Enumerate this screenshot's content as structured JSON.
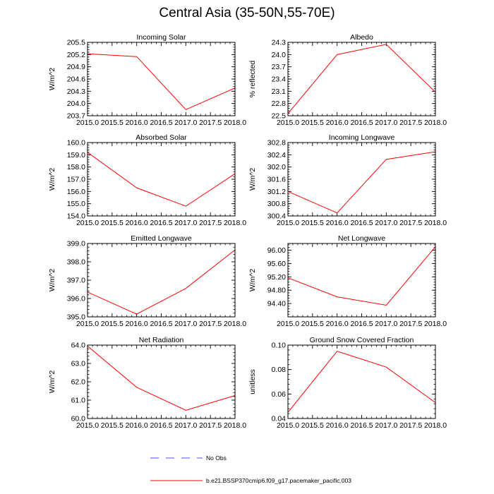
{
  "figure": {
    "title": "Central Asia (35-50N,55-70E)"
  },
  "legend": {
    "items": [
      {
        "label": "No Obs",
        "style": "dashed",
        "color": "#4b4bff"
      },
      {
        "label": "b.e21.BSSP370cmip6.f09_g17.pacemaker_pacific.003",
        "style": "solid",
        "color": "#ff0000"
      }
    ]
  },
  "chart_data": [
    {
      "type": "line",
      "title": "Incoming Solar",
      "ylabel": "W/m^2",
      "x": [
        2015.0,
        2016.0,
        2017.0,
        2018.0
      ],
      "series": [
        {
          "name": "b.e21.BSSP370cmip6.f09_g17.pacemaker_pacific.003",
          "color": "#ff0000",
          "values": [
            205.22,
            205.15,
            203.85,
            204.38
          ]
        }
      ],
      "xlim": [
        2015.0,
        2018.0
      ],
      "ylim": [
        203.7,
        205.5
      ],
      "xticks": [
        "2015.0",
        "2015.5",
        "2016.0",
        "2016.5",
        "2017.0",
        "2017.5",
        "2018.0"
      ],
      "yticks": [
        "203.7",
        "204.0",
        "204.3",
        "204.6",
        "204.9",
        "205.2",
        "205.5"
      ]
    },
    {
      "type": "line",
      "title": "Albedo",
      "ylabel": "% reflected",
      "x": [
        2015.0,
        2016.0,
        2017.0,
        2018.0
      ],
      "series": [
        {
          "name": "b.e21.BSSP370cmip6.f09_g17.pacemaker_pacific.003",
          "color": "#ff0000",
          "values": [
            22.55,
            24.0,
            24.25,
            23.08
          ]
        }
      ],
      "xlim": [
        2015.0,
        2018.0
      ],
      "ylim": [
        22.5,
        24.3
      ],
      "xticks": [
        "2015.0",
        "2015.5",
        "2016.0",
        "2016.5",
        "2017.0",
        "2017.5",
        "2018.0"
      ],
      "yticks": [
        "22.5",
        "22.8",
        "23.1",
        "23.4",
        "23.7",
        "24.0",
        "24.3"
      ]
    },
    {
      "type": "line",
      "title": "Absorbed Solar",
      "ylabel": "W/m^2",
      "x": [
        2015.0,
        2016.0,
        2017.0,
        2018.0
      ],
      "series": [
        {
          "name": "b.e21.BSSP370cmip6.f09_g17.pacemaker_pacific.003",
          "color": "#ff0000",
          "values": [
            159.2,
            156.3,
            154.8,
            157.45
          ]
        }
      ],
      "xlim": [
        2015.0,
        2018.0
      ],
      "ylim": [
        154.0,
        160.0
      ],
      "xticks": [
        "2015.0",
        "2015.5",
        "2016.0",
        "2016.5",
        "2017.0",
        "2017.5",
        "2018.0"
      ],
      "yticks": [
        "154.0",
        "155.0",
        "156.0",
        "157.0",
        "158.0",
        "159.0",
        "160.0"
      ]
    },
    {
      "type": "line",
      "title": "Incoming Longwave",
      "ylabel": "W/m^2",
      "x": [
        2015.0,
        2016.0,
        2017.0,
        2018.0
      ],
      "series": [
        {
          "name": "b.e21.BSSP370cmip6.f09_g17.pacemaker_pacific.003",
          "color": "#ff0000",
          "values": [
            301.2,
            300.5,
            302.25,
            302.5
          ]
        }
      ],
      "xlim": [
        2015.0,
        2018.0
      ],
      "ylim": [
        300.4,
        302.8
      ],
      "xticks": [
        "2015.0",
        "2015.5",
        "2016.0",
        "2016.5",
        "2017.0",
        "2017.5",
        "2018.0"
      ],
      "yticks": [
        "300.4",
        "300.8",
        "301.2",
        "301.6",
        "302.0",
        "302.4",
        "302.8"
      ]
    },
    {
      "type": "line",
      "title": "Emitted Longwave",
      "ylabel": "W/m^2",
      "x": [
        2015.0,
        2016.0,
        2017.0,
        2018.0
      ],
      "series": [
        {
          "name": "b.e21.BSSP370cmip6.f09_g17.pacemaker_pacific.003",
          "color": "#ff0000",
          "values": [
            396.35,
            395.15,
            396.55,
            398.65
          ]
        }
      ],
      "xlim": [
        2015.0,
        2018.0
      ],
      "ylim": [
        395.0,
        399.0
      ],
      "xticks": [
        "2015.0",
        "2015.5",
        "2016.0",
        "2016.5",
        "2017.0",
        "2017.5",
        "2018.0"
      ],
      "yticks": [
        "395.0",
        "396.0",
        "397.0",
        "398.0",
        "399.0"
      ]
    },
    {
      "type": "line",
      "title": "Net Longwave",
      "ylabel": "W/m^2",
      "x": [
        2015.0,
        2016.0,
        2017.0,
        2018.0
      ],
      "series": [
        {
          "name": "b.e21.BSSP370cmip6.f09_g17.pacemaker_pacific.003",
          "color": "#ff0000",
          "values": [
            95.17,
            94.6,
            94.35,
            96.1
          ]
        }
      ],
      "xlim": [
        2015.0,
        2018.0
      ],
      "ylim": [
        94.0,
        96.2
      ],
      "xticks": [
        "2015.0",
        "2015.5",
        "2016.0",
        "2016.5",
        "2017.0",
        "2017.5",
        "2018.0"
      ],
      "yticks": [
        "94.40",
        "94.80",
        "95.20",
        "95.60",
        "96.00"
      ]
    },
    {
      "type": "line",
      "title": "Net Radiation",
      "ylabel": "W/m^2",
      "x": [
        2015.0,
        2016.0,
        2017.0,
        2018.0
      ],
      "series": [
        {
          "name": "b.e21.BSSP370cmip6.f09_g17.pacemaker_pacific.003",
          "color": "#ff0000",
          "values": [
            63.95,
            61.7,
            60.45,
            61.25
          ]
        }
      ],
      "xlim": [
        2015.0,
        2018.0
      ],
      "ylim": [
        60.0,
        64.0
      ],
      "xticks": [
        "2015.0",
        "2015.5",
        "2016.0",
        "2016.5",
        "2017.0",
        "2017.5",
        "2018.0"
      ],
      "yticks": [
        "60.0",
        "61.0",
        "62.0",
        "63.0",
        "64.0"
      ]
    },
    {
      "type": "line",
      "title": "Ground Snow Covered Fraction",
      "ylabel": "unitless",
      "x": [
        2015.0,
        2016.0,
        2017.0,
        2018.0
      ],
      "series": [
        {
          "name": "b.e21.BSSP370cmip6.f09_g17.pacemaker_pacific.003",
          "color": "#ff0000",
          "values": [
            0.045,
            0.095,
            0.082,
            0.053
          ]
        }
      ],
      "xlim": [
        2015.0,
        2018.0
      ],
      "ylim": [
        0.04,
        0.1
      ],
      "xticks": [
        "2015.0",
        "2015.5",
        "2016.0",
        "2016.5",
        "2017.0",
        "2017.5",
        "2018.0"
      ],
      "yticks": [
        "0.04",
        "0.06",
        "0.08",
        "0.10"
      ]
    }
  ]
}
